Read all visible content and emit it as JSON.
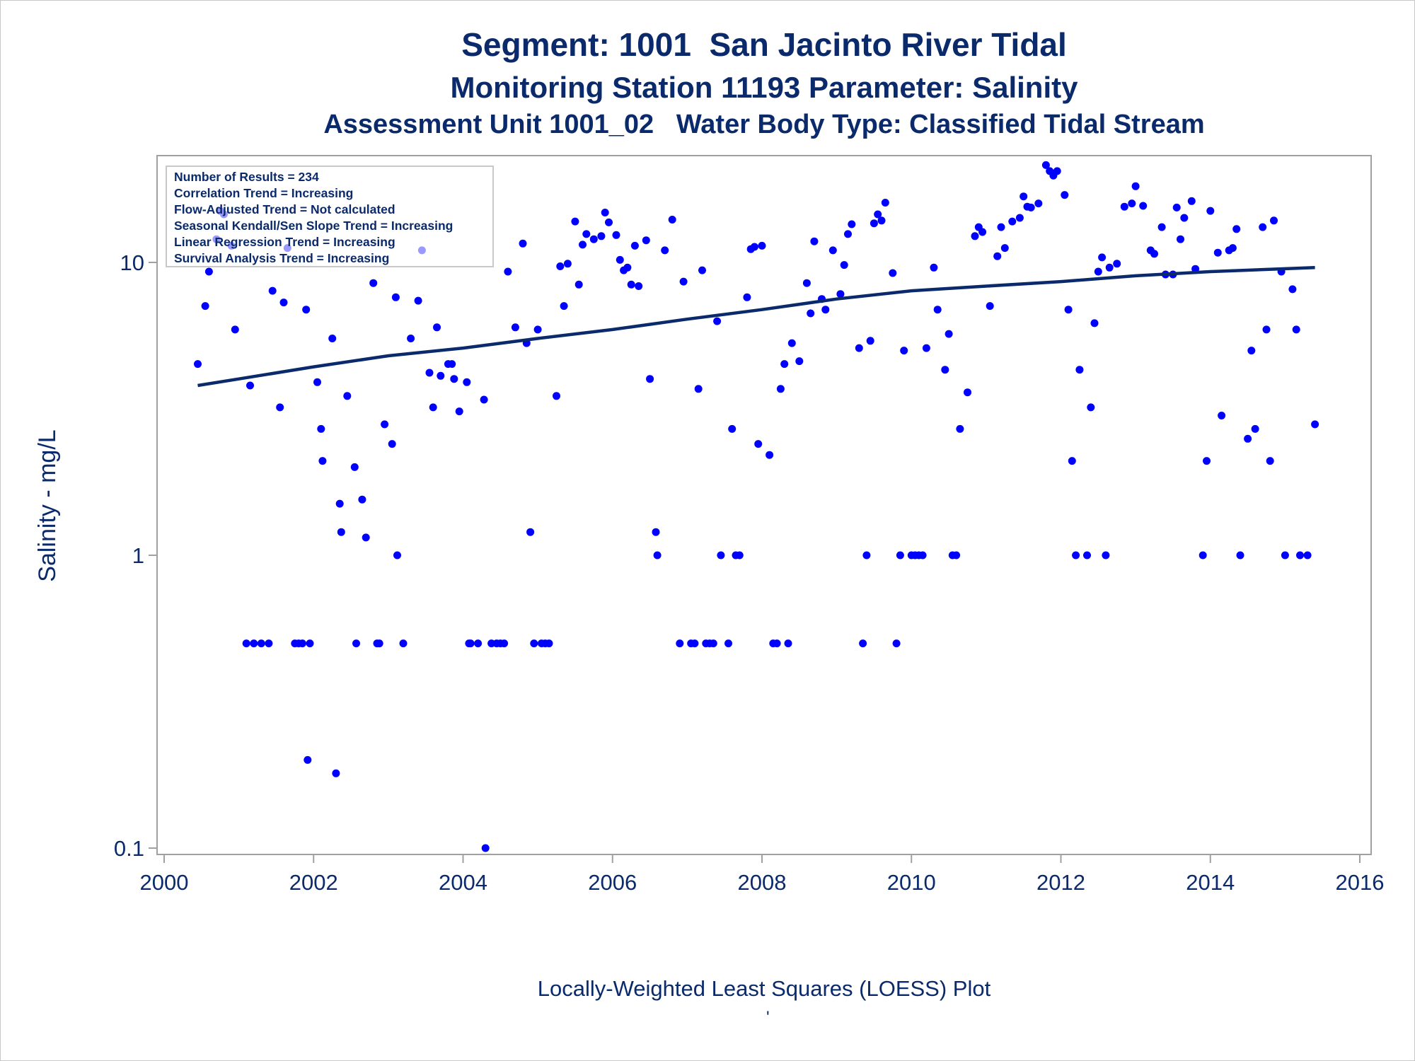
{
  "titles": {
    "line1": "Segment: 1001  San Jacinto River Tidal",
    "line2": "Monitoring Station 11193 Parameter: Salinity",
    "line3": "Assessment Unit 1001_02   Water Body Type: Classified Tidal Stream"
  },
  "footer": "Locally-Weighted Least Squares (LOESS) Plot",
  "footer_mark": "'",
  "colors": {
    "text": "#0a2a6b",
    "points": "#0000ff",
    "trend": "#0a2a6b",
    "frame": "#a0a0a0"
  },
  "chart_data": {
    "type": "scatter",
    "ylabel": "Salinity - mg/L",
    "xlabel": "",
    "y_scale": "log",
    "xlim": [
      2000,
      2016
    ],
    "ylim": [
      0.1,
      20
    ],
    "x_ticks": [
      "2000",
      "2002",
      "2004",
      "2006",
      "2008",
      "2010",
      "2012",
      "2014",
      "2016"
    ],
    "x_tick_values": [
      2000,
      2002,
      2004,
      2006,
      2008,
      2010,
      2012,
      2014,
      2016
    ],
    "y_ticks": [
      "0.1",
      "1",
      "10"
    ],
    "y_tick_values": [
      0.1,
      1,
      10
    ],
    "legend_placement": "top-left",
    "stats": [
      "Number of Results = 234",
      "Correlation Trend = Increasing",
      "Flow-Adjusted Trend = Not calculated",
      "Seasonal Kendall/Sen Slope Trend = Increasing",
      "Linear Regression Trend = Increasing",
      "Survival Analysis Trend = Increasing"
    ],
    "trend_line": [
      [
        2000.45,
        3.8
      ],
      [
        2001,
        4.0
      ],
      [
        2002,
        4.4
      ],
      [
        2003,
        4.8
      ],
      [
        2004,
        5.1
      ],
      [
        2005,
        5.5
      ],
      [
        2006,
        5.9
      ],
      [
        2007,
        6.4
      ],
      [
        2008,
        6.9
      ],
      [
        2009,
        7.5
      ],
      [
        2010,
        8.0
      ],
      [
        2011,
        8.3
      ],
      [
        2012,
        8.6
      ],
      [
        2013,
        9.0
      ],
      [
        2014,
        9.3
      ],
      [
        2015.4,
        9.6
      ]
    ],
    "points": [
      [
        2000.45,
        4.5
      ],
      [
        2000.55,
        7.1
      ],
      [
        2000.6,
        9.3
      ],
      [
        2000.7,
        12.0
      ],
      [
        2000.75,
        15.0
      ],
      [
        2000.8,
        14.6
      ],
      [
        2000.9,
        11.4
      ],
      [
        2000.95,
        5.9
      ],
      [
        2001.1,
        0.5
      ],
      [
        2001.15,
        3.8
      ],
      [
        2001.2,
        0.5
      ],
      [
        2001.3,
        0.5
      ],
      [
        2001.4,
        0.5
      ],
      [
        2001.45,
        8.0
      ],
      [
        2001.55,
        3.2
      ],
      [
        2001.6,
        7.3
      ],
      [
        2001.65,
        11.2
      ],
      [
        2001.75,
        0.5
      ],
      [
        2001.8,
        0.5
      ],
      [
        2001.85,
        0.5
      ],
      [
        2001.9,
        6.9
      ],
      [
        2001.92,
        0.2
      ],
      [
        2001.95,
        0.5
      ],
      [
        2002.05,
        3.9
      ],
      [
        2002.1,
        2.7
      ],
      [
        2002.12,
        2.1
      ],
      [
        2002.25,
        5.5
      ],
      [
        2002.3,
        0.18
      ],
      [
        2002.35,
        1.5
      ],
      [
        2002.37,
        1.2
      ],
      [
        2002.45,
        3.5
      ],
      [
        2002.55,
        2.0
      ],
      [
        2002.57,
        0.5
      ],
      [
        2002.65,
        1.55
      ],
      [
        2002.7,
        1.15
      ],
      [
        2002.8,
        8.5
      ],
      [
        2002.85,
        0.5
      ],
      [
        2002.88,
        0.5
      ],
      [
        2002.95,
        2.8
      ],
      [
        2003.05,
        2.4
      ],
      [
        2003.1,
        7.6
      ],
      [
        2003.12,
        1.0
      ],
      [
        2003.2,
        0.5
      ],
      [
        2003.3,
        5.5
      ],
      [
        2003.4,
        7.4
      ],
      [
        2003.45,
        11.0
      ],
      [
        2003.55,
        4.2
      ],
      [
        2003.6,
        3.2
      ],
      [
        2003.65,
        6.0
      ],
      [
        2003.7,
        4.1
      ],
      [
        2003.8,
        4.5
      ],
      [
        2003.85,
        4.5
      ],
      [
        2003.88,
        4.0
      ],
      [
        2003.95,
        3.1
      ],
      [
        2004.05,
        3.9
      ],
      [
        2004.08,
        0.5
      ],
      [
        2004.1,
        0.5
      ],
      [
        2004.2,
        0.5
      ],
      [
        2004.28,
        3.4
      ],
      [
        2004.3,
        0.1
      ],
      [
        2004.38,
        0.5
      ],
      [
        2004.45,
        0.5
      ],
      [
        2004.5,
        0.5
      ],
      [
        2004.55,
        0.5
      ],
      [
        2004.6,
        9.3
      ],
      [
        2004.7,
        6.0
      ],
      [
        2004.8,
        11.6
      ],
      [
        2004.85,
        5.3
      ],
      [
        2004.9,
        1.2
      ],
      [
        2004.95,
        0.5
      ],
      [
        2005.0,
        5.9
      ],
      [
        2005.05,
        0.5
      ],
      [
        2005.1,
        0.5
      ],
      [
        2005.15,
        0.5
      ],
      [
        2005.25,
        3.5
      ],
      [
        2005.3,
        9.7
      ],
      [
        2005.35,
        7.1
      ],
      [
        2005.4,
        9.9
      ],
      [
        2005.5,
        13.8
      ],
      [
        2005.55,
        8.4
      ],
      [
        2005.6,
        11.5
      ],
      [
        2005.65,
        12.5
      ],
      [
        2005.75,
        12.0
      ],
      [
        2005.85,
        12.3
      ],
      [
        2005.9,
        14.8
      ],
      [
        2005.95,
        13.7
      ],
      [
        2006.05,
        12.4
      ],
      [
        2006.1,
        10.2
      ],
      [
        2006.15,
        9.4
      ],
      [
        2006.2,
        9.6
      ],
      [
        2006.25,
        8.4
      ],
      [
        2006.35,
        8.3
      ],
      [
        2006.3,
        11.4
      ],
      [
        2006.45,
        11.9
      ],
      [
        2006.5,
        4.0
      ],
      [
        2006.58,
        1.2
      ],
      [
        2006.6,
        1.0
      ],
      [
        2006.7,
        11.0
      ],
      [
        2006.8,
        14.0
      ],
      [
        2006.9,
        0.5
      ],
      [
        2006.95,
        8.6
      ],
      [
        2007.05,
        0.5
      ],
      [
        2007.1,
        0.5
      ],
      [
        2007.15,
        3.7
      ],
      [
        2007.2,
        9.4
      ],
      [
        2007.25,
        0.5
      ],
      [
        2007.3,
        0.5
      ],
      [
        2007.35,
        0.5
      ],
      [
        2007.4,
        6.3
      ],
      [
        2007.45,
        1.0
      ],
      [
        2007.55,
        0.5
      ],
      [
        2007.6,
        2.7
      ],
      [
        2007.65,
        1.0
      ],
      [
        2007.7,
        1.0
      ],
      [
        2007.8,
        7.6
      ],
      [
        2007.85,
        11.1
      ],
      [
        2007.9,
        11.3
      ],
      [
        2007.95,
        2.4
      ],
      [
        2008.0,
        11.4
      ],
      [
        2008.1,
        2.2
      ],
      [
        2008.15,
        0.5
      ],
      [
        2008.2,
        0.5
      ],
      [
        2008.25,
        3.7
      ],
      [
        2008.3,
        4.5
      ],
      [
        2008.35,
        0.5
      ],
      [
        2008.4,
        5.3
      ],
      [
        2008.5,
        4.6
      ],
      [
        2008.6,
        8.5
      ],
      [
        2008.65,
        6.7
      ],
      [
        2008.7,
        11.8
      ],
      [
        2008.8,
        7.5
      ],
      [
        2008.85,
        6.9
      ],
      [
        2008.95,
        11.0
      ],
      [
        2009.05,
        7.8
      ],
      [
        2009.1,
        9.8
      ],
      [
        2009.15,
        12.5
      ],
      [
        2009.2,
        13.5
      ],
      [
        2009.3,
        5.1
      ],
      [
        2009.35,
        0.5
      ],
      [
        2009.4,
        1.0
      ],
      [
        2009.45,
        5.4
      ],
      [
        2009.5,
        13.6
      ],
      [
        2009.55,
        14.6
      ],
      [
        2009.6,
        13.9
      ],
      [
        2009.65,
        16.0
      ],
      [
        2009.75,
        9.2
      ],
      [
        2009.8,
        0.5
      ],
      [
        2009.85,
        1.0
      ],
      [
        2009.9,
        5.0
      ],
      [
        2010.0,
        1.0
      ],
      [
        2010.05,
        1.0
      ],
      [
        2010.1,
        1.0
      ],
      [
        2010.15,
        1.0
      ],
      [
        2010.2,
        5.1
      ],
      [
        2010.3,
        9.6
      ],
      [
        2010.35,
        6.9
      ],
      [
        2010.45,
        4.3
      ],
      [
        2010.5,
        5.7
      ],
      [
        2010.55,
        1.0
      ],
      [
        2010.6,
        1.0
      ],
      [
        2010.65,
        2.7
      ],
      [
        2010.75,
        3.6
      ],
      [
        2010.85,
        12.3
      ],
      [
        2010.9,
        13.2
      ],
      [
        2010.95,
        12.7
      ],
      [
        2011.05,
        7.1
      ],
      [
        2011.15,
        10.5
      ],
      [
        2011.2,
        13.2
      ],
      [
        2011.25,
        11.2
      ],
      [
        2011.35,
        13.8
      ],
      [
        2011.45,
        14.2
      ],
      [
        2011.5,
        16.8
      ],
      [
        2011.55,
        15.5
      ],
      [
        2011.6,
        15.4
      ],
      [
        2011.7,
        15.9
      ],
      [
        2011.8,
        21.5
      ],
      [
        2011.85,
        20.5
      ],
      [
        2011.9,
        19.8
      ],
      [
        2011.95,
        20.5
      ],
      [
        2012.05,
        17.0
      ],
      [
        2012.1,
        6.9
      ],
      [
        2012.15,
        2.1
      ],
      [
        2012.2,
        1.0
      ],
      [
        2012.25,
        4.3
      ],
      [
        2012.35,
        1.0
      ],
      [
        2012.4,
        3.2
      ],
      [
        2012.45,
        6.2
      ],
      [
        2012.5,
        9.3
      ],
      [
        2012.55,
        10.4
      ],
      [
        2012.6,
        1.0
      ],
      [
        2012.65,
        9.6
      ],
      [
        2012.75,
        9.9
      ],
      [
        2012.85,
        15.5
      ],
      [
        2012.95,
        15.9
      ],
      [
        2013.0,
        18.2
      ],
      [
        2013.1,
        15.6
      ],
      [
        2013.2,
        11.0
      ],
      [
        2013.25,
        10.7
      ],
      [
        2013.35,
        13.2
      ],
      [
        2013.4,
        9.1
      ],
      [
        2013.5,
        9.1
      ],
      [
        2013.55,
        15.4
      ],
      [
        2013.6,
        12.0
      ],
      [
        2013.65,
        14.2
      ],
      [
        2013.75,
        16.2
      ],
      [
        2013.8,
        9.5
      ],
      [
        2013.9,
        1.0
      ],
      [
        2013.95,
        2.1
      ],
      [
        2014.0,
        15.0
      ],
      [
        2014.1,
        10.8
      ],
      [
        2014.15,
        3.0
      ],
      [
        2014.25,
        11.0
      ],
      [
        2014.3,
        11.2
      ],
      [
        2014.35,
        13.0
      ],
      [
        2014.4,
        1.0
      ],
      [
        2014.5,
        2.5
      ],
      [
        2014.55,
        5.0
      ],
      [
        2014.6,
        2.7
      ],
      [
        2014.7,
        13.2
      ],
      [
        2014.75,
        5.9
      ],
      [
        2014.8,
        2.1
      ],
      [
        2014.85,
        13.9
      ],
      [
        2014.95,
        9.3
      ],
      [
        2015.0,
        1.0
      ],
      [
        2015.1,
        8.1
      ],
      [
        2015.15,
        5.9
      ],
      [
        2015.2,
        1.0
      ],
      [
        2015.3,
        1.0
      ],
      [
        2015.4,
        2.8
      ]
    ]
  }
}
